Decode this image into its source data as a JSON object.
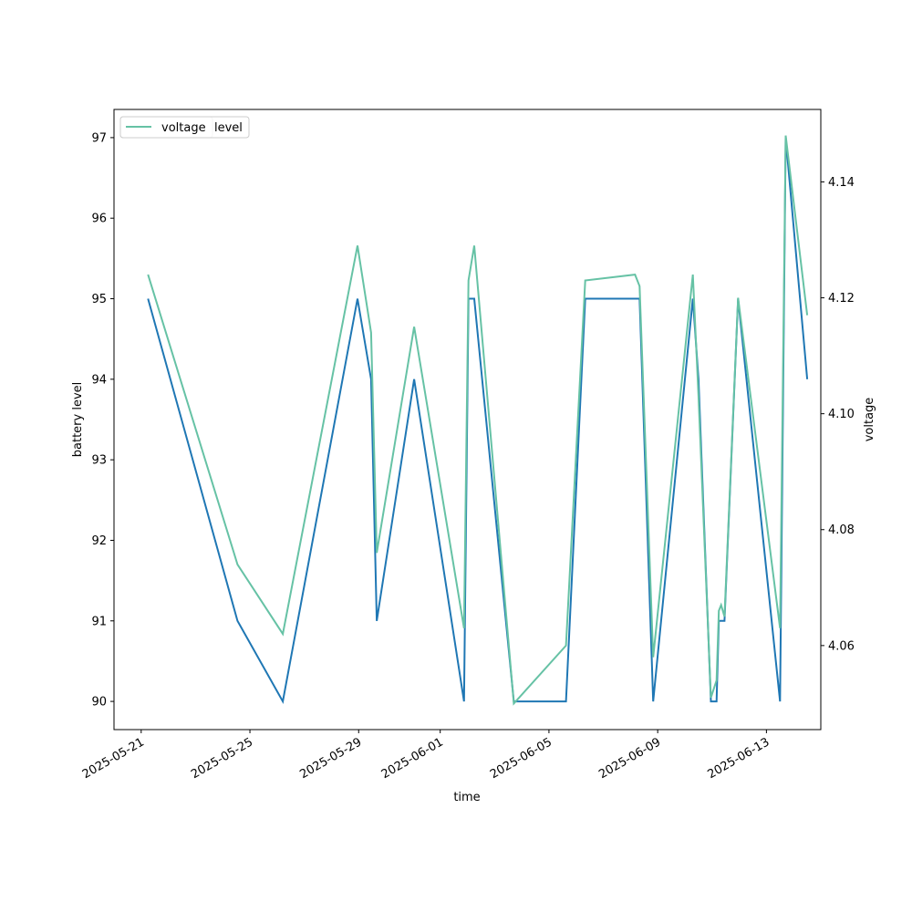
{
  "chart_data": {
    "type": "line",
    "xlabel": "time",
    "ylabel": "battery level",
    "y2label": "voltage",
    "x_axis_type": "date",
    "xlim": [
      "2025-05-20",
      "2025-06-15"
    ],
    "ylim": [
      89.65,
      97.35
    ],
    "y2lim": [
      4.0455,
      4.1525
    ],
    "x_ticks": [
      "2025-05-21",
      "2025-05-25",
      "2025-05-29",
      "2025-06-01",
      "2025-06-05",
      "2025-06-09",
      "2025-06-13"
    ],
    "y_ticks": [
      90,
      91,
      92,
      93,
      94,
      95,
      96,
      97
    ],
    "y2_ticks": [
      4.06,
      4.08,
      4.1,
      4.12,
      4.14
    ],
    "legend": {
      "placement": "upper left",
      "entries": [
        {
          "label": "level",
          "color": "#1f77b4"
        },
        {
          "label": "voltage",
          "color": "#66c2a5"
        }
      ]
    },
    "series": [
      {
        "name": "level",
        "axis": "left",
        "color": "#1f77b4",
        "points": [
          {
            "x": "2025-05-21T06:00",
            "y": 95
          },
          {
            "x": "2025-05-24T13:00",
            "y": 91
          },
          {
            "x": "2025-05-26T05:00",
            "y": 90
          },
          {
            "x": "2025-05-28T23:00",
            "y": 95
          },
          {
            "x": "2025-05-29T11:00",
            "y": 94
          },
          {
            "x": "2025-05-29T16:00",
            "y": 91
          },
          {
            "x": "2025-05-31T01:00",
            "y": 94
          },
          {
            "x": "2025-06-01T21:00",
            "y": 90
          },
          {
            "x": "2025-06-02T01:00",
            "y": 95
          },
          {
            "x": "2025-06-02T06:00",
            "y": 95
          },
          {
            "x": "2025-06-03T17:00",
            "y": 90
          },
          {
            "x": "2025-06-05T15:00",
            "y": 90
          },
          {
            "x": "2025-06-06T08:00",
            "y": 95
          },
          {
            "x": "2025-06-08T08:00",
            "y": 95
          },
          {
            "x": "2025-06-08T20:00",
            "y": 90
          },
          {
            "x": "2025-06-10T07:00",
            "y": 95
          },
          {
            "x": "2025-06-10T12:00",
            "y": 94
          },
          {
            "x": "2025-06-10T23:00",
            "y": 90
          },
          {
            "x": "2025-06-11T04:00",
            "y": 90
          },
          {
            "x": "2025-06-11T06:00",
            "y": 91
          },
          {
            "x": "2025-06-11T11:00",
            "y": 91
          },
          {
            "x": "2025-06-11T23:00",
            "y": 95
          },
          {
            "x": "2025-06-13T12:00",
            "y": 90
          },
          {
            "x": "2025-06-13T17:00",
            "y": 97
          },
          {
            "x": "2025-06-14T12:00",
            "y": 94
          }
        ]
      },
      {
        "name": "voltage",
        "axis": "right",
        "color": "#66c2a5",
        "points": [
          {
            "x": "2025-05-21T06:00",
            "y": 4.124
          },
          {
            "x": "2025-05-24T13:00",
            "y": 4.074
          },
          {
            "x": "2025-05-26T05:00",
            "y": 4.062
          },
          {
            "x": "2025-05-28T23:00",
            "y": 4.129
          },
          {
            "x": "2025-05-29T11:00",
            "y": 4.114
          },
          {
            "x": "2025-05-29T16:00",
            "y": 4.076
          },
          {
            "x": "2025-05-31T01:00",
            "y": 4.115
          },
          {
            "x": "2025-06-01T21:00",
            "y": 4.063
          },
          {
            "x": "2025-06-02T01:00",
            "y": 4.123
          },
          {
            "x": "2025-06-02T06:00",
            "y": 4.129
          },
          {
            "x": "2025-06-03T17:00",
            "y": 4.05
          },
          {
            "x": "2025-06-05T15:00",
            "y": 4.06
          },
          {
            "x": "2025-06-06T08:00",
            "y": 4.123
          },
          {
            "x": "2025-06-08T04:00",
            "y": 4.124
          },
          {
            "x": "2025-06-08T08:00",
            "y": 4.122
          },
          {
            "x": "2025-06-08T20:00",
            "y": 4.058
          },
          {
            "x": "2025-06-10T07:00",
            "y": 4.124
          },
          {
            "x": "2025-06-10T12:00",
            "y": 4.103
          },
          {
            "x": "2025-06-10T23:00",
            "y": 4.051
          },
          {
            "x": "2025-06-11T04:00",
            "y": 4.054
          },
          {
            "x": "2025-06-11T06:00",
            "y": 4.066
          },
          {
            "x": "2025-06-11T08:00",
            "y": 4.067
          },
          {
            "x": "2025-06-11T11:00",
            "y": 4.065
          },
          {
            "x": "2025-06-11T23:00",
            "y": 4.12
          },
          {
            "x": "2025-06-13T12:00",
            "y": 4.063
          },
          {
            "x": "2025-06-13T17:00",
            "y": 4.148
          },
          {
            "x": "2025-06-14T12:00",
            "y": 4.117
          }
        ]
      }
    ]
  }
}
